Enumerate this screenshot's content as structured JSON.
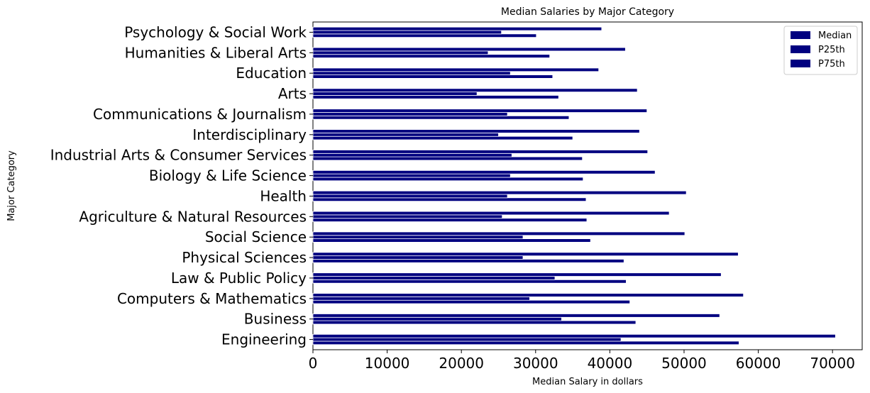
{
  "chart_data": {
    "type": "bar",
    "orientation": "horizontal",
    "title": "Median Salaries by Major Category",
    "xlabel": "Median Salary in dollars",
    "ylabel": "Major Category",
    "xlim": [
      0,
      74000
    ],
    "xticks": [
      0,
      10000,
      20000,
      30000,
      40000,
      50000,
      60000,
      70000
    ],
    "grid": false,
    "legend_position": "top-right",
    "bar_color": "#000080",
    "categories": [
      "Engineering",
      "Business",
      "Computers & Mathematics",
      "Law & Public Policy",
      "Physical Sciences",
      "Social Science",
      "Agriculture & Natural Resources",
      "Health",
      "Biology & Life Science",
      "Industrial Arts & Consumer Services",
      "Interdisciplinary",
      "Communications & Journalism",
      "Arts",
      "Education",
      "Humanities & Liberal Arts",
      "Psychology & Social Work"
    ],
    "series": [
      {
        "name": "Median",
        "values": [
          57400,
          43500,
          42700,
          42200,
          41900,
          37400,
          36900,
          36800,
          36400,
          36300,
          35000,
          34500,
          33100,
          32300,
          31900,
          30100
        ]
      },
      {
        "name": "P25th",
        "values": [
          41500,
          33500,
          29200,
          32600,
          28300,
          28300,
          25500,
          26200,
          26600,
          26800,
          25000,
          26200,
          22100,
          26600,
          23600,
          25400
        ]
      },
      {
        "name": "P75th",
        "values": [
          70400,
          54800,
          58000,
          55000,
          57300,
          50100,
          48000,
          50300,
          46100,
          45100,
          44000,
          45000,
          43700,
          38500,
          42100,
          38900
        ]
      }
    ]
  }
}
